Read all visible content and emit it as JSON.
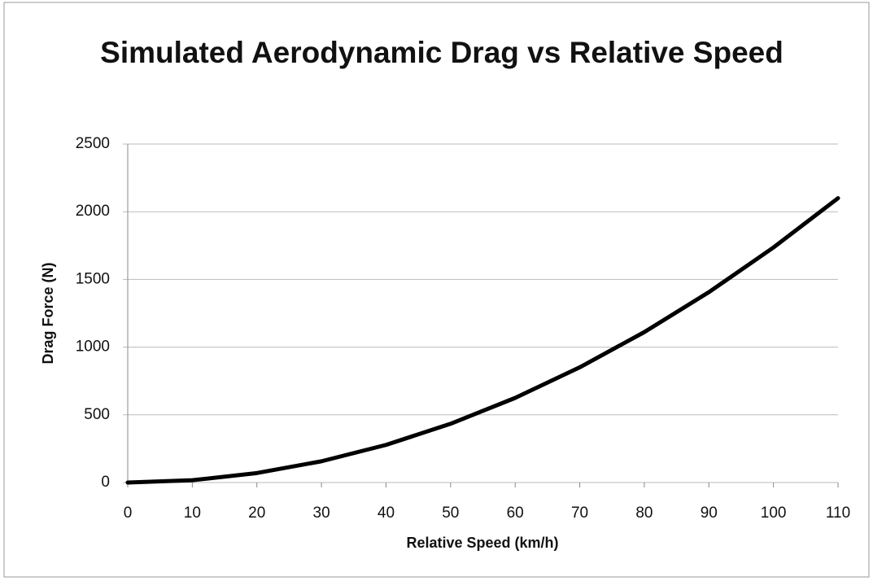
{
  "chart_data": {
    "type": "line",
    "title": "Simulated Aerodynamic Drag vs Relative Speed",
    "x_label": "Relative Speed (km/h)",
    "y_label": "Drag Force (N)",
    "x": [
      0,
      10,
      20,
      30,
      40,
      50,
      60,
      70,
      80,
      90,
      100,
      110
    ],
    "values": [
      0,
      17,
      70,
      157,
      278,
      434,
      625,
      851,
      1111,
      1406,
      1736,
      2100
    ],
    "color": "#000000",
    "xlim": [
      0,
      110
    ],
    "xticks": [
      0,
      10,
      20,
      30,
      40,
      50,
      60,
      70,
      80,
      90,
      100,
      110
    ],
    "ylim": [
      0,
      2500
    ],
    "yticks": [
      0,
      500,
      1000,
      1500,
      2000,
      2500
    ],
    "grid": true
  }
}
